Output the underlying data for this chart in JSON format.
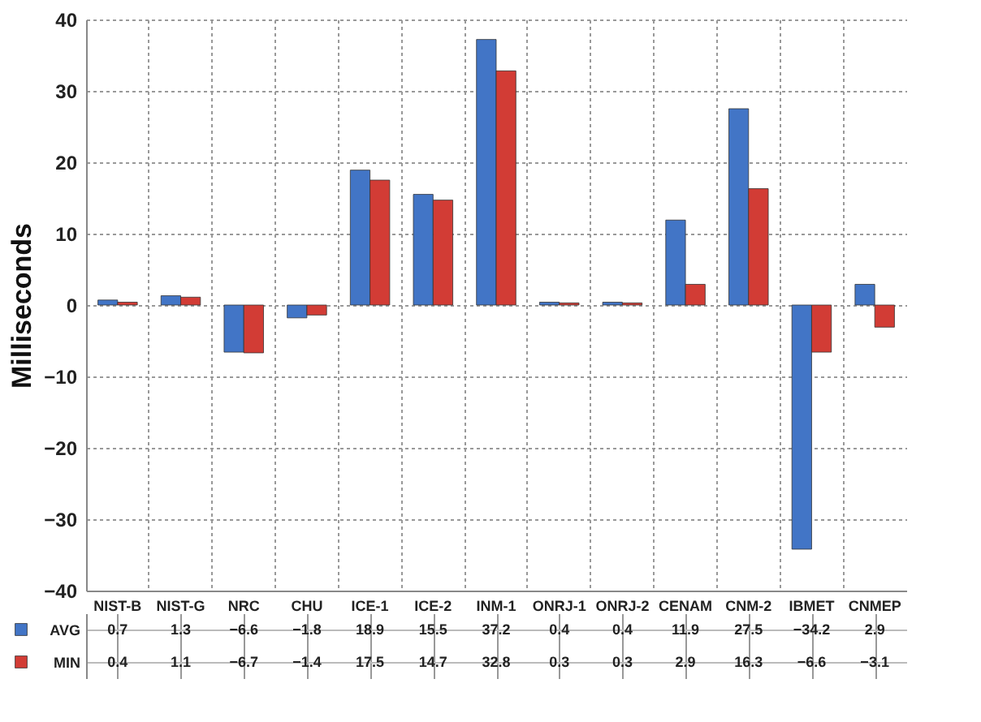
{
  "chart_data": {
    "type": "bar",
    "ylabel": "Milliseconds",
    "categories": [
      "NIST-B",
      "NIST-G",
      "NRC",
      "CHU",
      "ICE-1",
      "ICE-2",
      "INM-1",
      "ONRJ-1",
      "ONRJ-2",
      "CENAM",
      "CNM-2",
      "IBMET",
      "CNMEP"
    ],
    "series": [
      {
        "name": "AVG",
        "color": "#4275c6",
        "values": [
          0.7,
          1.3,
          -6.6,
          -1.8,
          18.9,
          15.5,
          37.2,
          0.4,
          0.4,
          11.9,
          27.5,
          -34.2,
          2.9
        ]
      },
      {
        "name": "MIN",
        "color": "#d23c35",
        "values": [
          0.4,
          1.1,
          -6.7,
          -1.4,
          17.5,
          14.7,
          32.8,
          0.3,
          0.3,
          2.9,
          16.3,
          -6.6,
          -3.1
        ]
      }
    ],
    "ylim": [
      -40,
      40
    ],
    "yticks": [
      -40,
      -30,
      -20,
      -10,
      0,
      10,
      20,
      30,
      40
    ],
    "grid": true,
    "data_labels": true,
    "legend": "bottom left"
  }
}
